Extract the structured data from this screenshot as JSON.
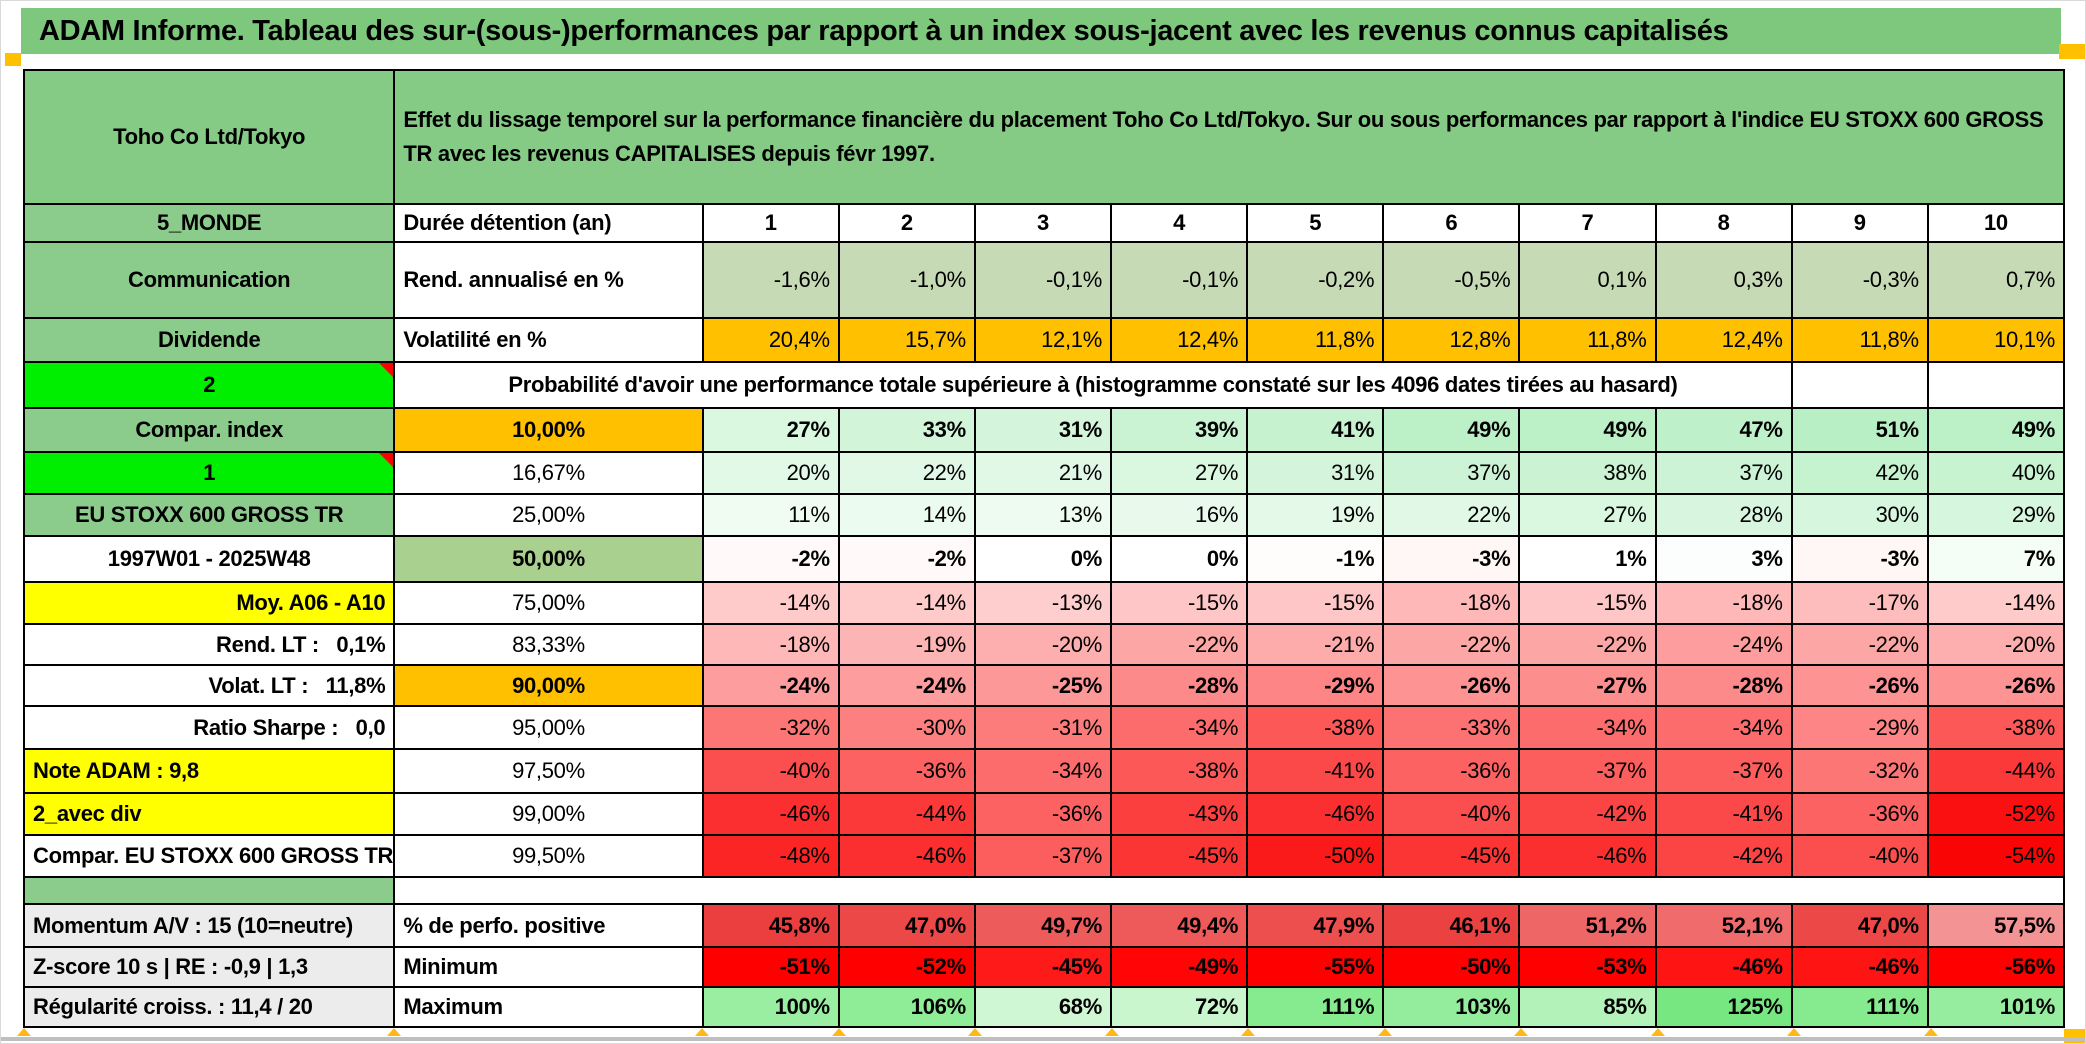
{
  "title": "ADAM Informe. Tableau des sur-(sous-)performances par rapport à un index sous-jacent avec les revenus connus capitalisés",
  "header": {
    "instrument": "Toho Co Ltd/Tokyo",
    "description": "Effet du lissage temporel sur la performance financière du placement Toho Co Ltd/Tokyo. Sur ou sous performances par rapport à l'indice EU STOXX 600 GROSS TR avec les revenus CAPITALISES depuis févr 1997."
  },
  "colors": {
    "title_green": "#7ec87e",
    "header_green": "#85cb85",
    "label_green": "#8bcb8b",
    "bright_green": "#00ee00",
    "orange": "#ffc000",
    "yellow": "#ffff00",
    "sage_row": "#c7dab6",
    "green50_cell": "#a9d08e",
    "gray_label": "#ececec",
    "red_text": "#ff0000",
    "marker_orange": "#ffc000"
  },
  "table": {
    "column_headers": [
      "1",
      "2",
      "3",
      "4",
      "5",
      "6",
      "7",
      "8",
      "9",
      "10"
    ],
    "rows": [
      {
        "label": "5_MONDE",
        "label_kind": "green",
        "col2": "Durée détention (an)",
        "col2_kind": "left",
        "kind": "head",
        "values": [
          "1",
          "2",
          "3",
          "4",
          "5",
          "6",
          "7",
          "8",
          "9",
          "10"
        ]
      },
      {
        "label": "Communication",
        "label_kind": "green",
        "col2": "Rend. annualisé en %",
        "col2_kind": "left",
        "kind": "sage",
        "values": [
          "-1,6%",
          "-1,0%",
          "-0,1%",
          "-0,1%",
          "-0,2%",
          "-0,5%",
          "0,1%",
          "0,3%",
          "-0,3%",
          "0,7%"
        ]
      },
      {
        "label": "Dividende",
        "label_kind": "green",
        "col2": "Volatilité en %",
        "col2_kind": "left",
        "kind": "orangerow",
        "values": [
          "20,4%",
          "15,7%",
          "12,1%",
          "12,4%",
          "11,8%",
          "12,8%",
          "11,8%",
          "12,4%",
          "11,8%",
          "10,1%"
        ]
      },
      {
        "label": "2",
        "label_kind": "bright",
        "kind": "mergedrow",
        "merged_text": "Probabilité d'avoir une performance totale supérieure à (histogramme constaté sur les 4096 dates tirées au hasard)",
        "merged_span": 9,
        "trailing_empty": 2
      },
      {
        "label": "Compar. index",
        "label_kind": "green",
        "col2": "10,00%",
        "col2_kind": "pctb orange",
        "kind": "prob",
        "bold": true,
        "values": [
          "27%",
          "33%",
          "31%",
          "39%",
          "41%",
          "49%",
          "49%",
          "47%",
          "51%",
          "49%"
        ]
      },
      {
        "label": "1",
        "label_kind": "bright",
        "col2": "16,67%",
        "col2_kind": "pct",
        "kind": "prob",
        "values": [
          "20%",
          "22%",
          "21%",
          "27%",
          "31%",
          "37%",
          "38%",
          "37%",
          "42%",
          "40%"
        ]
      },
      {
        "label": "EU STOXX 600 GROSS TR",
        "label_kind": "green small",
        "col2": "25,00%",
        "col2_kind": "pct",
        "kind": "prob",
        "values": [
          "11%",
          "14%",
          "13%",
          "16%",
          "19%",
          "22%",
          "27%",
          "28%",
          "30%",
          "29%"
        ]
      },
      {
        "label": "1997W01 - 2025W48",
        "label_kind": "redc",
        "col2": "50,00%",
        "col2_kind": "g50",
        "kind": "prob",
        "big": true,
        "values": [
          "-2%",
          "-2%",
          "0%",
          "0%",
          "-1%",
          "-3%",
          "1%",
          "3%",
          "-3%",
          "7%"
        ]
      },
      {
        "label": "Moy. A06 - A10",
        "label_kind": "yellow r",
        "col2": "75,00%",
        "col2_kind": "pct",
        "kind": "prob",
        "values": [
          "-14%",
          "-14%",
          "-13%",
          "-15%",
          "-15%",
          "-18%",
          "-15%",
          "-18%",
          "-17%",
          "-14%"
        ]
      },
      {
        "label": "Rend. LT :   0,1%",
        "label_kind": "redtxt",
        "col2": "83,33%",
        "col2_kind": "pct",
        "kind": "prob",
        "values": [
          "-18%",
          "-19%",
          "-20%",
          "-22%",
          "-21%",
          "-22%",
          "-22%",
          "-24%",
          "-22%",
          "-20%"
        ]
      },
      {
        "label": "Volat. LT :   11,8%",
        "label_kind": "redtxt",
        "col2": "90,00%",
        "col2_kind": "pctb orange",
        "kind": "prob",
        "bold": true,
        "values": [
          "-24%",
          "-24%",
          "-25%",
          "-28%",
          "-29%",
          "-26%",
          "-27%",
          "-28%",
          "-26%",
          "-26%"
        ]
      },
      {
        "label": "Ratio Sharpe :   0,0",
        "label_kind": "redtxt",
        "col2": "95,00%",
        "col2_kind": "pct",
        "kind": "prob",
        "thick_bottom": true,
        "values": [
          "-32%",
          "-30%",
          "-31%",
          "-34%",
          "-38%",
          "-33%",
          "-34%",
          "-34%",
          "-29%",
          "-38%"
        ]
      },
      {
        "label": "Note ADAM : 9,8",
        "label_kind": "yellow l",
        "col2": "97,50%",
        "col2_kind": "pct",
        "kind": "prob",
        "values": [
          "-40%",
          "-36%",
          "-34%",
          "-38%",
          "-41%",
          "-36%",
          "-37%",
          "-37%",
          "-32%",
          "-44%"
        ]
      },
      {
        "label": "2_avec div",
        "label_kind": "yellow l",
        "col2": "99,00%",
        "col2_kind": "pct",
        "kind": "prob",
        "values": [
          "-46%",
          "-44%",
          "-36%",
          "-43%",
          "-46%",
          "-40%",
          "-42%",
          "-41%",
          "-36%",
          "-52%"
        ]
      },
      {
        "label": "Compar. EU STOXX 600 GROSS TR",
        "label_kind": "white small",
        "col2": "99,50%",
        "col2_kind": "pct",
        "kind": "prob",
        "values": [
          "-48%",
          "-46%",
          "-37%",
          "-45%",
          "-50%",
          "-45%",
          "-46%",
          "-42%",
          "-40%",
          "-54%"
        ]
      },
      {
        "kind": "separator"
      },
      {
        "label": "Momentum A/V : 15 (10=neutre)",
        "label_kind": "gray",
        "col2": "% de perfo. positive",
        "col2_kind": "left",
        "kind": "pctpos",
        "bold": true,
        "block_top": true,
        "values": [
          "45,8%",
          "47,0%",
          "49,7%",
          "49,4%",
          "47,9%",
          "46,1%",
          "51,2%",
          "52,1%",
          "47,0%",
          "57,5%"
        ]
      },
      {
        "label": "Z-score 10 s | RE : -0,9 | 1,3",
        "label_kind": "gray",
        "col2": "Minimum",
        "col2_kind": "left",
        "kind": "min",
        "bold": true,
        "values": [
          "-51%",
          "-52%",
          "-45%",
          "-49%",
          "-55%",
          "-50%",
          "-53%",
          "-46%",
          "-46%",
          "-56%"
        ]
      },
      {
        "label": "Régularité croiss. : 11,4 / 20",
        "label_kind": "gray",
        "col2": "Maximum",
        "col2_kind": "left",
        "kind": "max",
        "bold": true,
        "values": [
          "100%",
          "106%",
          "68%",
          "72%",
          "111%",
          "103%",
          "85%",
          "125%",
          "111%",
          "101%"
        ]
      }
    ]
  }
}
